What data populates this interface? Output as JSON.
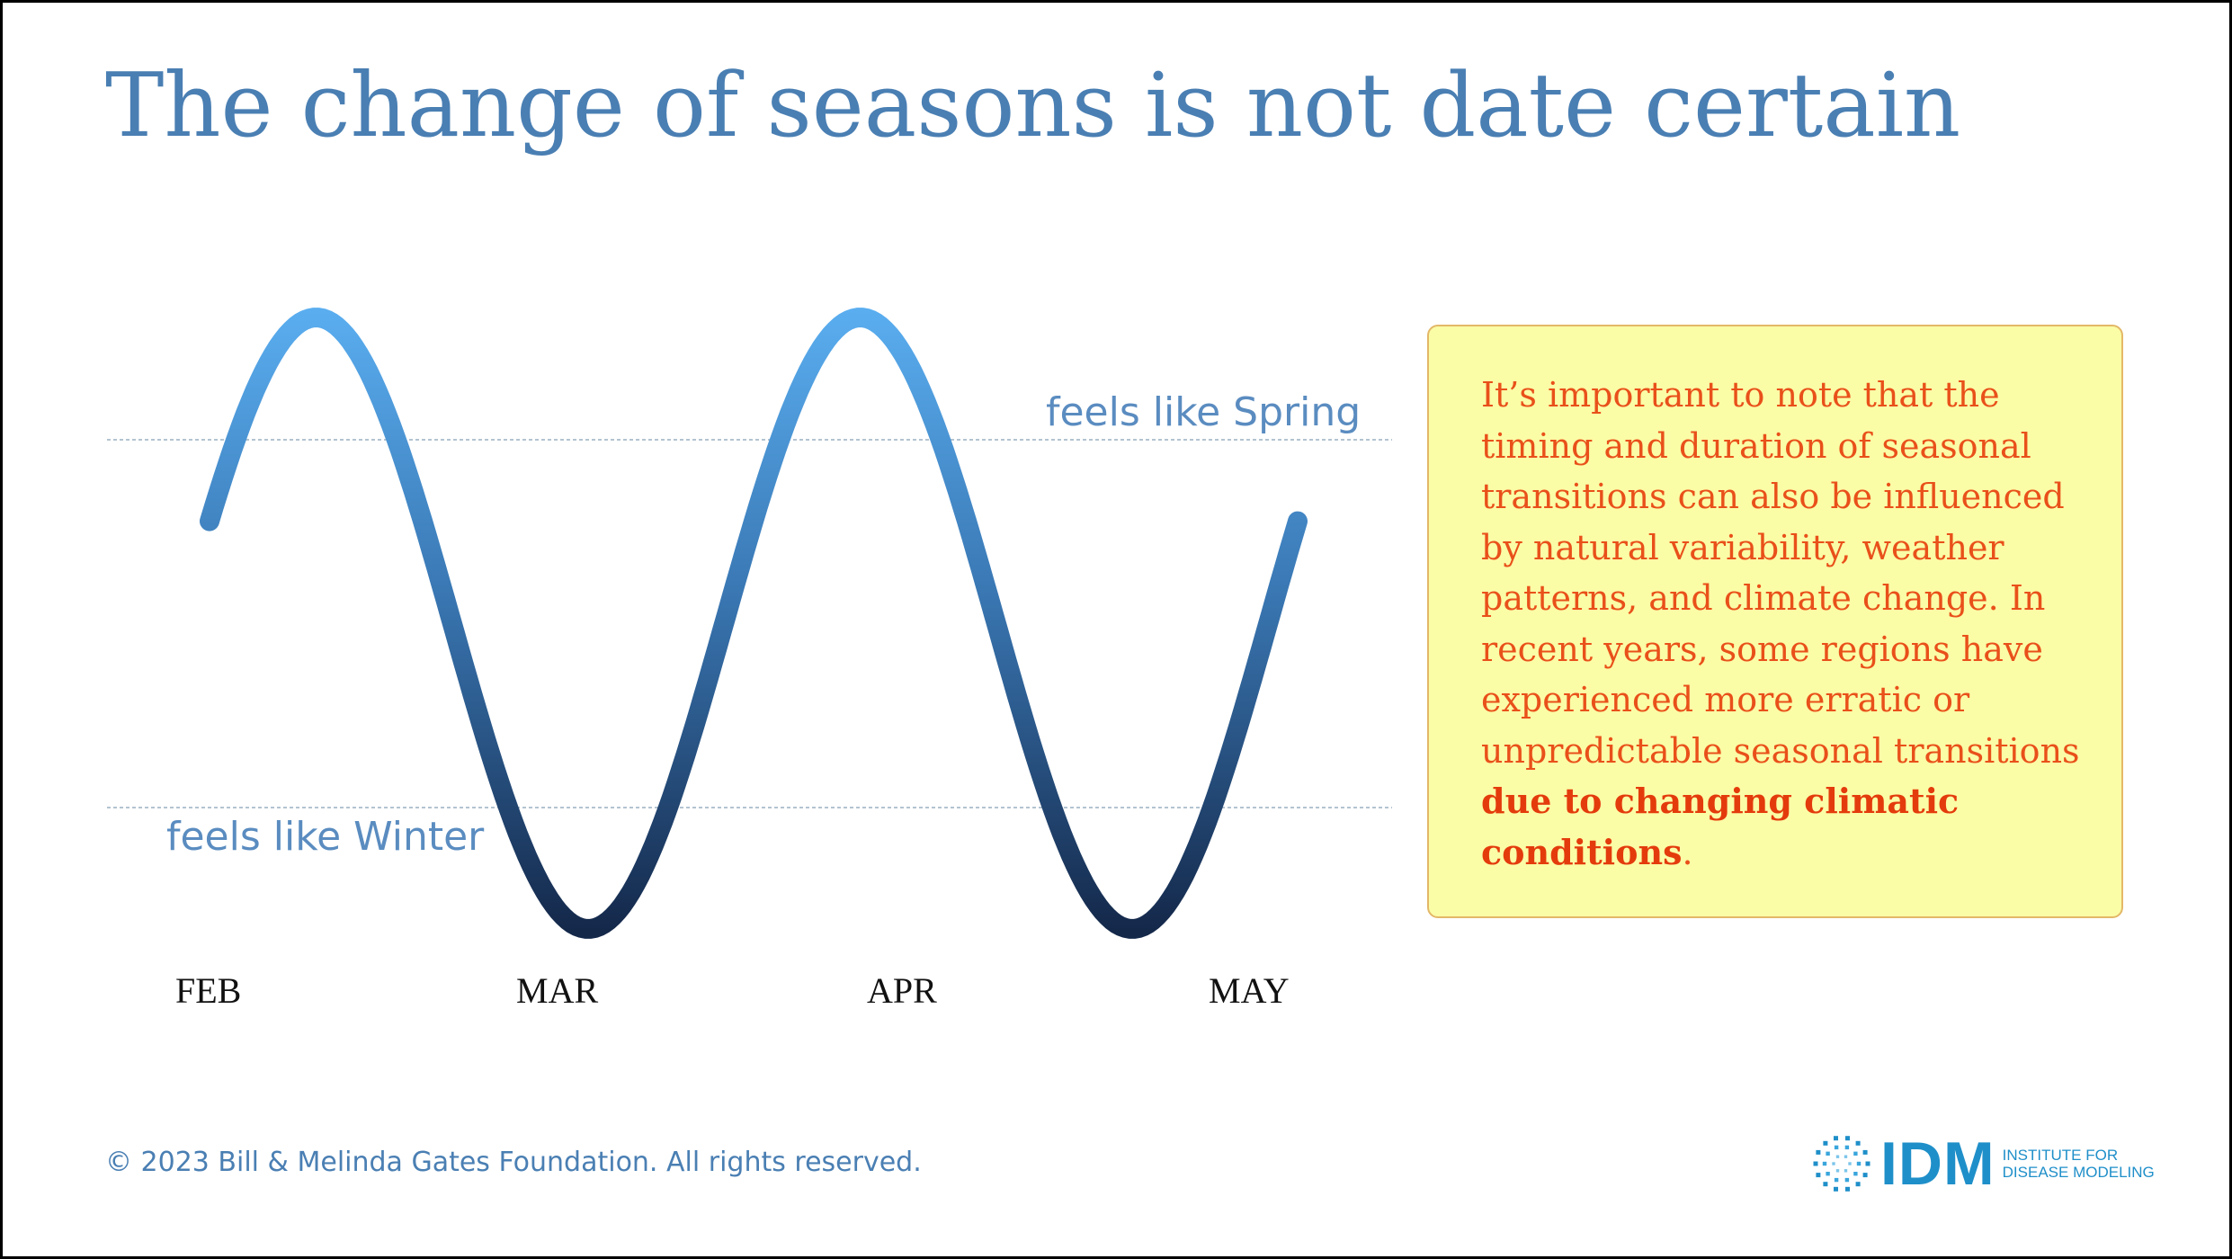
{
  "slide": {
    "title": "The change of seasons is not date certain"
  },
  "chart_data": {
    "type": "line",
    "categories": [
      "FEB",
      "MAR",
      "APR",
      "MAY"
    ],
    "reference_lines": [
      {
        "label": "feels like Spring"
      },
      {
        "label": "feels like Winter"
      }
    ],
    "colors": {
      "gradient_top": "#5aaef0",
      "gradient_bottom": "#14284a",
      "reference_line": "#9ab0c2"
    }
  },
  "note": {
    "text_before": "It’s important to note that the timing and duration of seasonal transitions can also be influenced by natural variability, weather patterns, and climate change. In recent years, some regions have experienced more erratic or unpredictable seasonal transitions ",
    "text_bold": "due to changing climatic conditions",
    "text_after": "."
  },
  "footer": {
    "copyright": "© 2023 Bill & Melinda Gates Foundation. All rights reserved."
  },
  "logo": {
    "name": "IDM",
    "subtitle_line1": "INSTITUTE FOR",
    "subtitle_line2": "DISEASE MODELING",
    "icon": "circular-dots-icon"
  }
}
